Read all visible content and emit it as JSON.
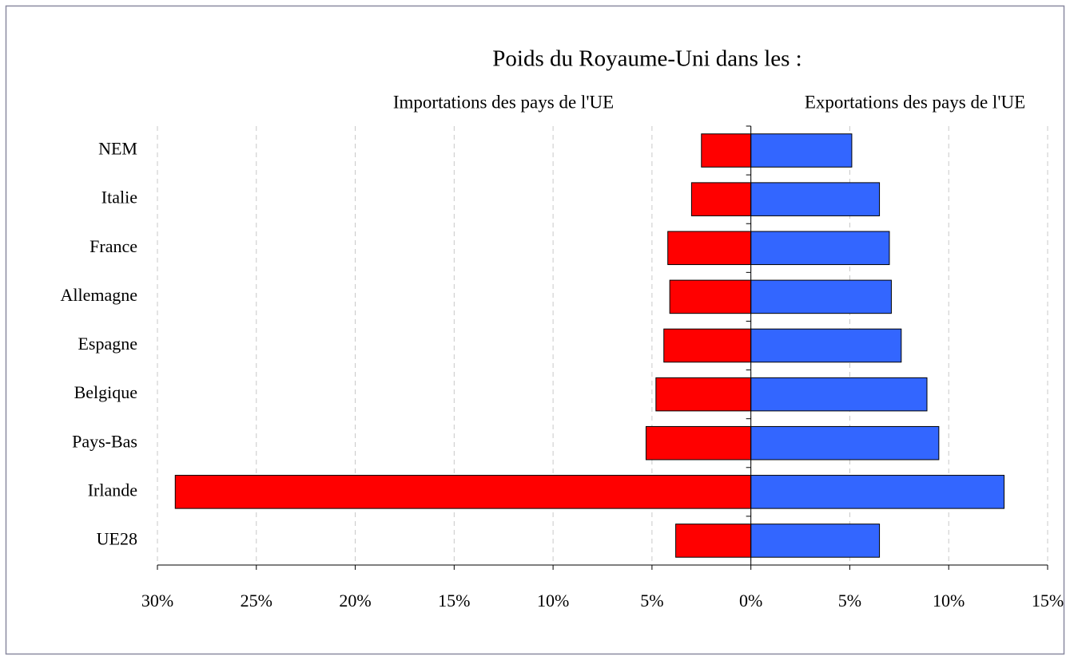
{
  "chart_data": {
    "type": "butterfly",
    "title": "Poids du Royaume-Uni dans les :",
    "categories": [
      "NEM",
      "Italie",
      "France",
      "Allemagne",
      "Espagne",
      "Belgique",
      "Pays-Bas",
      "Irlande",
      "UE28"
    ],
    "series": [
      {
        "name": "Importations des pays de l'UE",
        "color": "#ff0000",
        "values": [
          -2.5,
          -3.0,
          -4.2,
          -4.1,
          -4.4,
          -4.8,
          -5.3,
          -29.1,
          -3.8
        ]
      },
      {
        "name": "Exportations des pays de l'UE",
        "color": "#3366ff",
        "values": [
          5.1,
          6.5,
          7.0,
          7.1,
          7.6,
          8.9,
          9.5,
          12.8,
          6.5
        ]
      }
    ],
    "xlim": [
      -30,
      15
    ],
    "xticks": [
      {
        "value": -30,
        "label": "30%"
      },
      {
        "value": -25,
        "label": "25%"
      },
      {
        "value": -20,
        "label": "20%"
      },
      {
        "value": -15,
        "label": "15%"
      },
      {
        "value": -10,
        "label": "10%"
      },
      {
        "value": -5,
        "label": "5%"
      },
      {
        "value": 0,
        "label": "0%"
      },
      {
        "value": 5,
        "label": "5%"
      },
      {
        "value": 10,
        "label": "10%"
      },
      {
        "value": 15,
        "label": "15%"
      }
    ],
    "grid": true
  }
}
